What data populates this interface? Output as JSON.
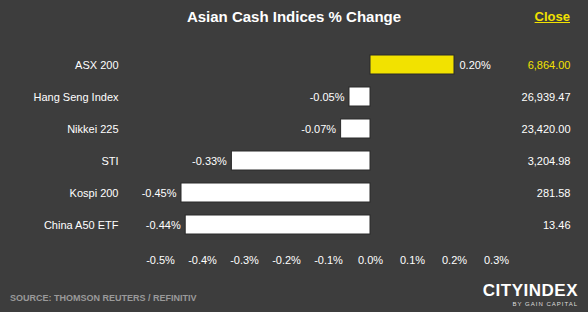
{
  "chart_data": {
    "type": "bar",
    "orientation": "horizontal",
    "title": "Asian Cash Indices % Change",
    "categories": [
      "ASX 200",
      "Hang Seng Index",
      "Nikkei 225",
      "STI",
      "Kospi 200",
      "China A50 ETF"
    ],
    "values": [
      0.2,
      -0.05,
      -0.07,
      -0.33,
      -0.45,
      -0.44
    ],
    "value_labels": [
      "0.20%",
      "-0.05%",
      "-0.07%",
      "-0.33%",
      "-0.45%",
      "-0.44%"
    ],
    "data_labels": true,
    "colors": [
      "#f2e200",
      "#ffffff",
      "#ffffff",
      "#ffffff",
      "#ffffff",
      "#ffffff"
    ],
    "xlim": [
      -0.5,
      0.3
    ],
    "xticks": [
      {
        "value": -0.5,
        "label": "-0.5%"
      },
      {
        "value": -0.4,
        "label": "-0.4%"
      },
      {
        "value": -0.3,
        "label": "-0.3%"
      },
      {
        "value": -0.2,
        "label": "-0.2%"
      },
      {
        "value": -0.1,
        "label": "-0.1%"
      },
      {
        "value": 0,
        "label": "0.0%"
      },
      {
        "value": 0.1,
        "label": "0.1%"
      },
      {
        "value": 0.2,
        "label": "0.2%"
      },
      {
        "value": 0.3,
        "label": "0.3%"
      }
    ],
    "grid": false,
    "close": {
      "title": "Close",
      "values": [
        6864.0,
        26939.47,
        23420.0,
        3204.98,
        281.58,
        13.46
      ],
      "value_labels": [
        "6,864.00",
        "26,939.47",
        "23,420.00",
        "3,204.98",
        "281.58",
        "13.46"
      ]
    },
    "source": "SOURCE: THOMSON REUTERS / REFINITIV",
    "logo": "CITYINDEX",
    "logo_subtitle": "BY GAIN CAPITAL"
  }
}
